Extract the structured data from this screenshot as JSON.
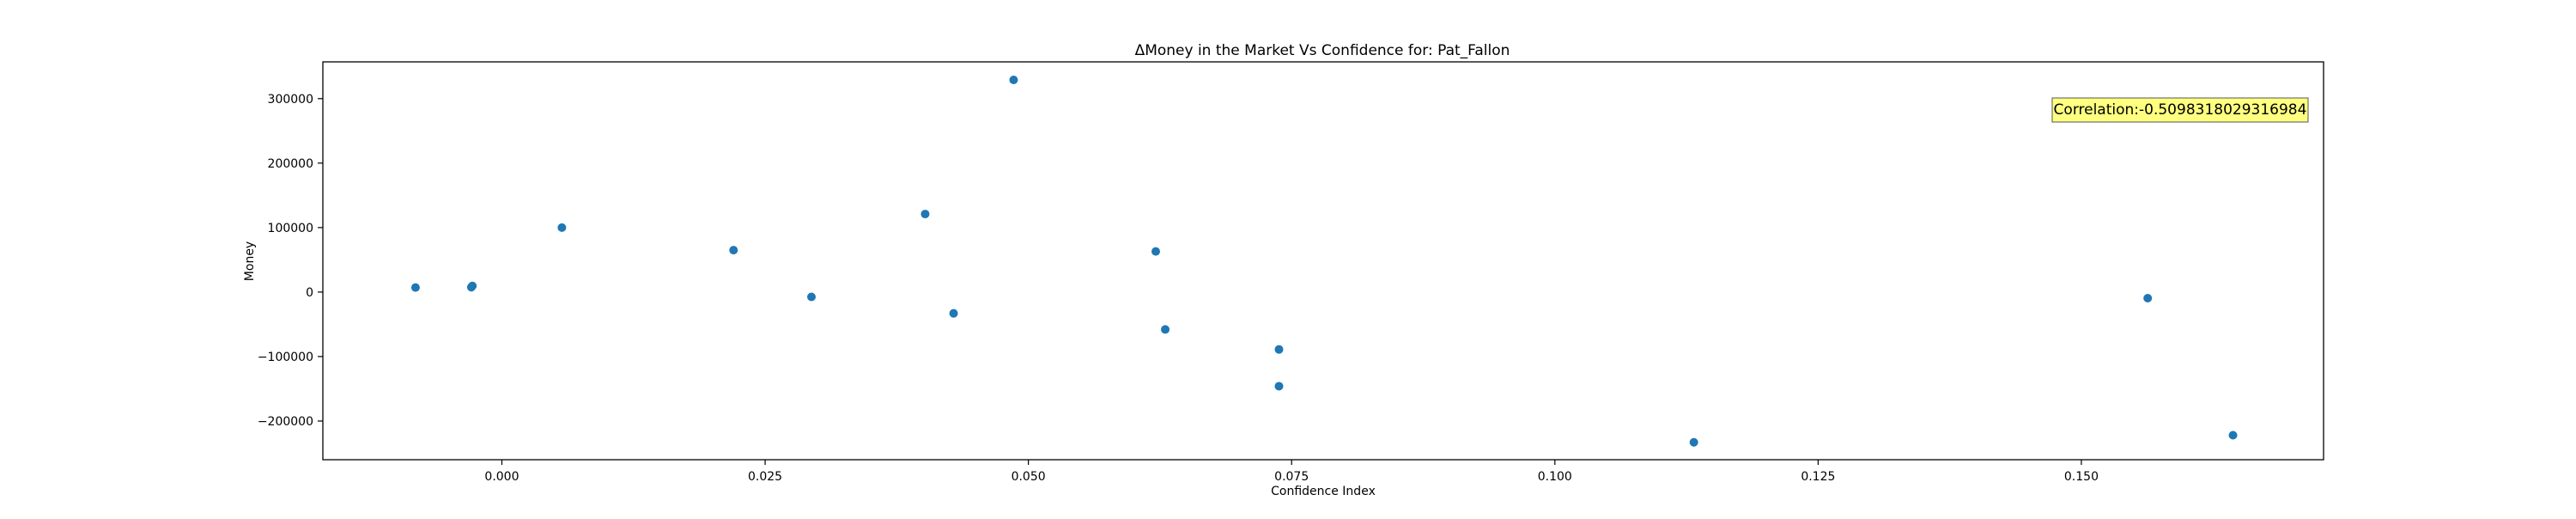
{
  "chart_data": {
    "type": "scatter",
    "title": "ΔMoney in the Market Vs Confidence for: Pat_Fallon",
    "xlabel": "Confidence Index",
    "ylabel": "Money",
    "xlim": [
      -0.017,
      0.173
    ],
    "ylim": [
      -260000,
      357000
    ],
    "x_ticks": [
      0.0,
      0.025,
      0.05,
      0.075,
      0.1,
      0.125,
      0.15
    ],
    "x_tick_labels": [
      "0.000",
      "0.025",
      "0.050",
      "0.075",
      "0.100",
      "0.125",
      "0.150"
    ],
    "y_ticks": [
      -200000,
      -100000,
      0,
      100000,
      200000,
      300000
    ],
    "y_tick_labels": [
      "−200000",
      "−100000",
      "0",
      "100000",
      "200000",
      "300000"
    ],
    "grid": false,
    "legend": "none",
    "annotation": {
      "text": "Correlation:-0.5098318029316984",
      "placement": "top-right",
      "background": "#ffff80"
    },
    "marker_color": "#1f77b4",
    "series": [
      {
        "points": [
          {
            "x": -0.0082,
            "y": 7000
          },
          {
            "x": -0.0029,
            "y": 7500
          },
          {
            "x": -0.0028,
            "y": 9500
          },
          {
            "x": 0.0057,
            "y": 100000
          },
          {
            "x": 0.022,
            "y": 65000
          },
          {
            "x": 0.0294,
            "y": -7500
          },
          {
            "x": 0.0402,
            "y": 121000
          },
          {
            "x": 0.0429,
            "y": -33000
          },
          {
            "x": 0.0486,
            "y": 329000
          },
          {
            "x": 0.0621,
            "y": 63000
          },
          {
            "x": 0.063,
            "y": -58000
          },
          {
            "x": 0.0738,
            "y": -89000
          },
          {
            "x": 0.0738,
            "y": -146000
          },
          {
            "x": 0.1132,
            "y": -233000
          },
          {
            "x": 0.1563,
            "y": -9500
          },
          {
            "x": 0.1644,
            "y": -222000
          }
        ]
      }
    ]
  }
}
